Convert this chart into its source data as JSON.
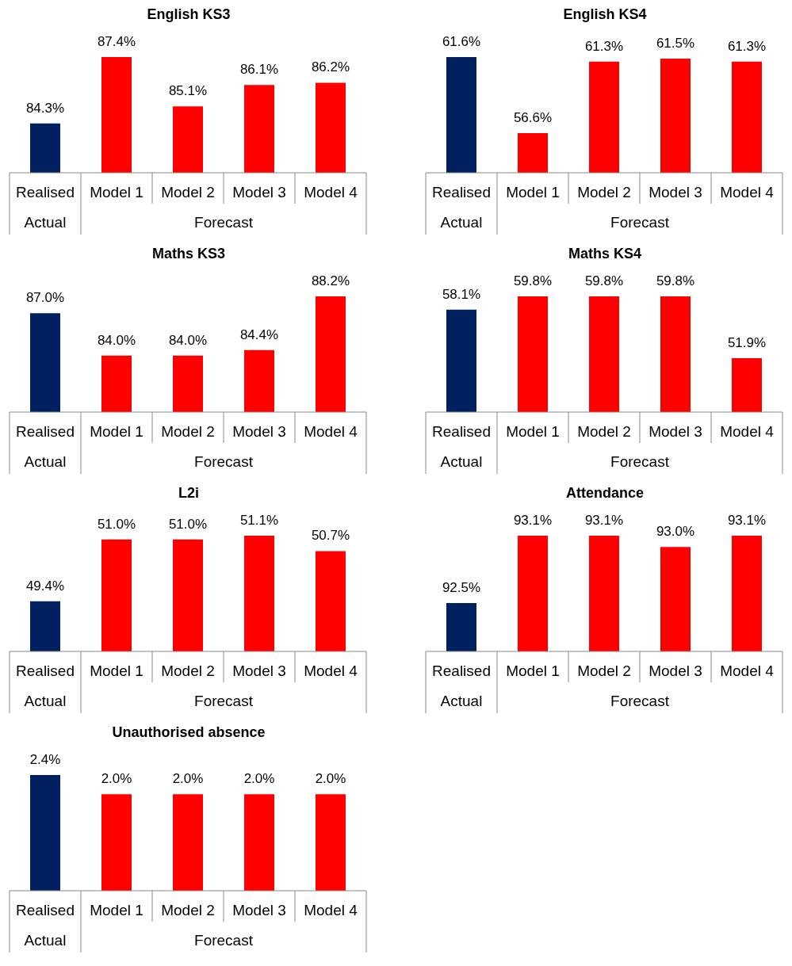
{
  "chart_data": [
    {
      "type": "bar",
      "title": "English KS3",
      "categories": [
        "Realised",
        "Model 1",
        "Model 2",
        "Model 3",
        "Model 4"
      ],
      "values": [
        84.3,
        87.4,
        85.1,
        86.1,
        86.2
      ],
      "value_labels": [
        "84.3%",
        "87.4%",
        "85.1%",
        "86.1%",
        "86.2%"
      ],
      "colors": [
        "#002060",
        "#ff0000",
        "#ff0000",
        "#ff0000",
        "#ff0000"
      ],
      "ylim": [
        82,
        87.4
      ],
      "annotations": [
        "Actual",
        "Forecast"
      ]
    },
    {
      "type": "bar",
      "title": "English KS4",
      "categories": [
        "Realised",
        "Model 1",
        "Model 2",
        "Model 3",
        "Model 4"
      ],
      "values": [
        61.6,
        56.6,
        61.3,
        61.5,
        61.3
      ],
      "value_labels": [
        "61.6%",
        "56.6%",
        "61.3%",
        "61.5%",
        "61.3%"
      ],
      "colors": [
        "#002060",
        "#ff0000",
        "#ff0000",
        "#ff0000",
        "#ff0000"
      ],
      "ylim": [
        54,
        61.6
      ],
      "annotations": [
        "Actual",
        "Forecast"
      ]
    },
    {
      "type": "bar",
      "title": "Maths KS3",
      "categories": [
        "Realised",
        "Model 1",
        "Model 2",
        "Model 3",
        "Model 4"
      ],
      "values": [
        87.0,
        84.0,
        84.0,
        84.4,
        88.2
      ],
      "value_labels": [
        "87.0%",
        "84.0%",
        "84.0%",
        "84.4%",
        "88.2%"
      ],
      "colors": [
        "#002060",
        "#ff0000",
        "#ff0000",
        "#ff0000",
        "#ff0000"
      ],
      "ylim": [
        80,
        88.2
      ],
      "annotations": [
        "Actual",
        "Forecast"
      ]
    },
    {
      "type": "bar",
      "title": "Maths KS4",
      "categories": [
        "Realised",
        "Model 1",
        "Model 2",
        "Model 3",
        "Model 4"
      ],
      "values": [
        58.1,
        59.8,
        59.8,
        59.8,
        51.9
      ],
      "value_labels": [
        "58.1%",
        "59.8%",
        "59.8%",
        "59.8%",
        "51.9%"
      ],
      "colors": [
        "#002060",
        "#ff0000",
        "#ff0000",
        "#ff0000",
        "#ff0000"
      ],
      "ylim": [
        45,
        59.8
      ],
      "annotations": [
        "Actual",
        "Forecast"
      ]
    },
    {
      "type": "bar",
      "title": "L2i",
      "categories": [
        "Realised",
        "Model 1",
        "Model 2",
        "Model 3",
        "Model 4"
      ],
      "values": [
        49.4,
        51.0,
        51.0,
        51.1,
        50.7
      ],
      "value_labels": [
        "49.4%",
        "51.0%",
        "51.0%",
        "51.1%",
        "50.7%"
      ],
      "colors": [
        "#002060",
        "#ff0000",
        "#ff0000",
        "#ff0000",
        "#ff0000"
      ],
      "ylim": [
        48.1,
        51.1
      ],
      "annotations": [
        "Actual",
        "Forecast"
      ]
    },
    {
      "type": "bar",
      "title": "Attendance",
      "categories": [
        "Realised",
        "Model 1",
        "Model 2",
        "Model 3",
        "Model 4"
      ],
      "values": [
        92.5,
        93.1,
        93.1,
        93.0,
        93.1
      ],
      "value_labels": [
        "92.5%",
        "93.1%",
        "93.1%",
        "93.0%",
        "93.1%"
      ],
      "colors": [
        "#002060",
        "#ff0000",
        "#ff0000",
        "#ff0000",
        "#ff0000"
      ],
      "ylim": [
        92.07,
        93.1
      ],
      "annotations": [
        "Actual",
        "Forecast"
      ]
    },
    {
      "type": "bar",
      "title": "Unauthorised absence",
      "categories": [
        "Realised",
        "Model 1",
        "Model 2",
        "Model 3",
        "Model 4"
      ],
      "values": [
        2.4,
        2.0,
        2.0,
        2.0,
        2.0
      ],
      "value_labels": [
        "2.4%",
        "2.0%",
        "2.0%",
        "2.0%",
        "2.0%"
      ],
      "colors": [
        "#002060",
        "#ff0000",
        "#ff0000",
        "#ff0000",
        "#ff0000"
      ],
      "ylim": [
        0,
        2.4
      ],
      "annotations": [
        "Actual",
        "Forecast"
      ]
    }
  ]
}
